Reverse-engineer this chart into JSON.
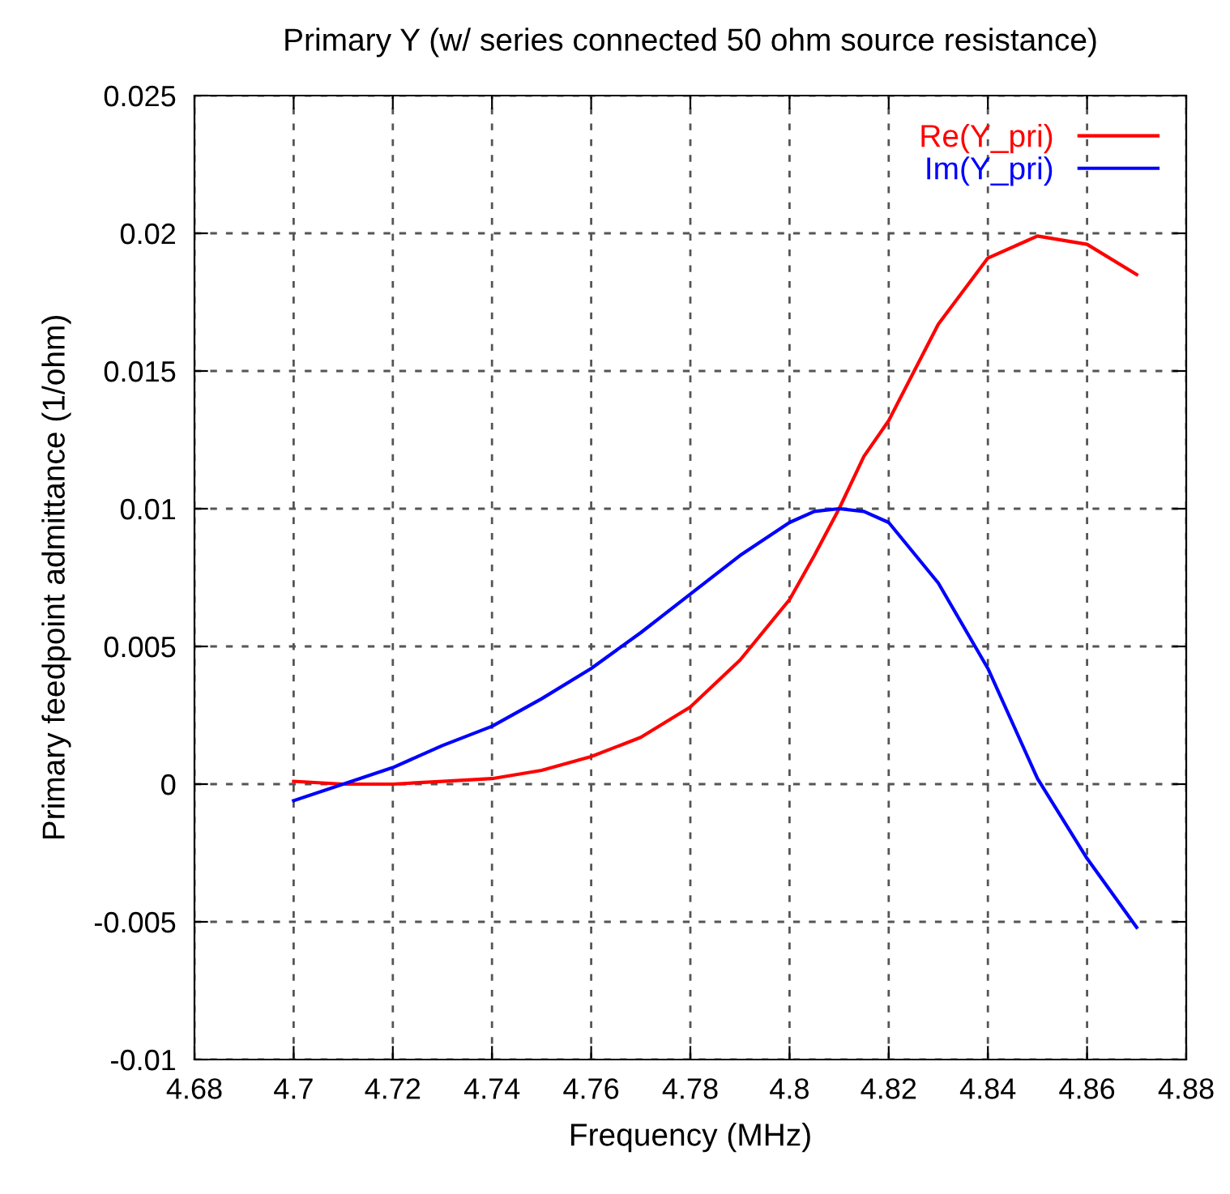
{
  "chart_data": {
    "type": "line",
    "title": "Primary Y (w/ series connected 50 ohm source resistance)",
    "xlabel": "Frequency (MHz)",
    "ylabel": "Primary feedpoint admittance (1/ohm)",
    "x": [
      4.7,
      4.71,
      4.72,
      4.73,
      4.74,
      4.75,
      4.76,
      4.77,
      4.78,
      4.79,
      4.8,
      4.805,
      4.81,
      4.815,
      4.82,
      4.83,
      4.84,
      4.85,
      4.86,
      4.87
    ],
    "series": [
      {
        "name": "Re(Y_pri)",
        "color": "#ff0000",
        "values": [
          0.0001,
          0.0,
          0.0,
          0.0001,
          0.0002,
          0.0005,
          0.001,
          0.0017,
          0.0028,
          0.0045,
          0.0067,
          0.0083,
          0.01,
          0.0119,
          0.0132,
          0.0167,
          0.0191,
          0.0199,
          0.0196,
          0.0185
        ]
      },
      {
        "name": "Im(Y_pri)",
        "color": "#0000ff",
        "values": [
          -0.0006,
          0.0,
          0.0006,
          0.0014,
          0.0021,
          0.0031,
          0.0042,
          0.0055,
          0.0069,
          0.0083,
          0.0095,
          0.0099,
          0.01,
          0.0099,
          0.0095,
          0.0073,
          0.0042,
          0.0002,
          -0.0027,
          -0.0052
        ]
      }
    ],
    "xlim": [
      4.68,
      4.88
    ],
    "xticks": [
      4.68,
      4.7,
      4.72,
      4.74,
      4.76,
      4.78,
      4.8,
      4.82,
      4.84,
      4.86,
      4.88
    ],
    "ylim": [
      -0.01,
      0.025
    ],
    "yticks": [
      -0.01,
      -0.005,
      0,
      0.005,
      0.01,
      0.015,
      0.02,
      0.025
    ],
    "grid": true,
    "legend": "top right",
    "marker": "none",
    "line_style": "solid"
  }
}
